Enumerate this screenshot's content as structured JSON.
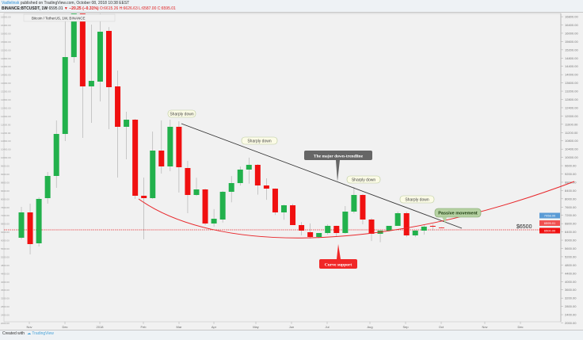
{
  "header": {
    "user": "Vadlelinsk",
    "published": "published on TradingView.com, October 08, 2018 10:38 EEST",
    "symbol": "BINANCE:BTCUSDT, 1W",
    "last": "6595.01",
    "change": "▼ −20.25 (−0.31%)",
    "ohlc": "O:6615.26 H:6626.63 L:6587.00 C:6595.01",
    "title": "Bitcoin / TetherUS, 1W, BINANCE"
  },
  "footer": {
    "created": "Created with",
    "brand": "TradingView"
  },
  "colors": {
    "up": "#22b14c",
    "down": "#f01010",
    "trendline": "#333333",
    "curve": "#e8262a",
    "level": "#e8262a"
  },
  "annotations": {
    "sharply_down": [
      "Sharply down",
      "Sharply down",
      "Sharply down",
      "Sharply down"
    ],
    "trendline_label": "The major down-trendline",
    "passive": "Passive movement",
    "curve_label": "Curve support",
    "level_label": "$6500"
  },
  "price_badges": [
    {
      "text": "7058.00",
      "color": "#5a9bd5"
    },
    {
      "text": "6595.01",
      "color": "#f05050"
    },
    {
      "text": "6500.00",
      "color": "#f01010"
    }
  ],
  "chart_data": {
    "type": "candlestick",
    "title": "Bitcoin / TetherUS, 1W, BINANCE",
    "ylim": [
      2000,
      17000
    ],
    "y_ticks": [
      "16800.00",
      "16400.00",
      "16000.00",
      "15600.00",
      "15200.00",
      "14800.00",
      "14400.00",
      "14000.00",
      "13600.00",
      "13200.00",
      "12800.00",
      "12400.00",
      "12000.00",
      "11600.00",
      "11200.00",
      "10800.00",
      "10400.00",
      "10000.00",
      "9600.00",
      "9200.00",
      "8800.00",
      "8400.00",
      "8000.00",
      "7600.00",
      "7200.00",
      "6800.00",
      "6400.00",
      "6000.00",
      "5600.00",
      "5200.00",
      "4800.00",
      "4400.00",
      "4000.00",
      "3600.00",
      "3200.00",
      "2800.00",
      "2400.00",
      "2000.00"
    ],
    "x_ticks": [
      "Nov",
      "Dec",
      "2018",
      "Feb",
      "Mar",
      "Apr",
      "May",
      "Jun",
      "Jul",
      "Aug",
      "Sep",
      "Oct",
      "Nov",
      "Dec"
    ],
    "candles": [
      [
        6117,
        7611,
        6040,
        7343
      ],
      [
        7343,
        7764,
        5313,
        5811
      ],
      [
        5849,
        8070,
        5696,
        7994
      ],
      [
        8032,
        9296,
        7764,
        9104
      ],
      [
        9104,
        11785,
        8530,
        11134
      ],
      [
        11134,
        16600,
        10789,
        14849
      ],
      [
        14849,
        19000,
        14581,
        17200
      ],
      [
        17200,
        19000,
        10943,
        13432
      ],
      [
        13432,
        16419,
        11670,
        13700
      ],
      [
        13662,
        17000,
        12705,
        16075
      ],
      [
        16113,
        16300,
        11364,
        13394
      ],
      [
        13432,
        14198,
        9028,
        11479
      ],
      [
        11479,
        12206,
        9908,
        11823
      ],
      [
        11823,
        11860,
        7994,
        8147
      ],
      [
        8147,
        9028,
        6040,
        8032
      ],
      [
        8032,
        11249,
        7994,
        10330
      ],
      [
        10330,
        11785,
        9219,
        9564
      ],
      [
        9564,
        11823,
        9334,
        11479
      ],
      [
        11479,
        11747,
        8300,
        9526
      ],
      [
        9487,
        9832,
        7304,
        8185
      ],
      [
        8185,
        9020,
        8140,
        8453
      ],
      [
        8453,
        8490,
        6730,
        6806
      ],
      [
        6806,
        7500,
        6650,
        7036
      ],
      [
        6998,
        8380,
        6850,
        8338
      ],
      [
        8338,
        9100,
        7830,
        8760
      ],
      [
        8760,
        9560,
        8640,
        9411
      ],
      [
        9411,
        9990,
        8730,
        9641
      ],
      [
        9641,
        9680,
        8200,
        8645
      ],
      [
        8645,
        8990,
        7950,
        8491
      ],
      [
        8491,
        8500,
        7220,
        7343
      ],
      [
        7343,
        7720,
        6990,
        7687
      ],
      [
        7687,
        7760,
        6730,
        6730
      ],
      [
        6730,
        6880,
        6230,
        6462
      ],
      [
        6385,
        6810,
        6080,
        6155
      ],
      [
        6155,
        6270,
        6100,
        6347
      ],
      [
        6347,
        6770,
        6270,
        6692
      ],
      [
        6692,
        6700,
        6200,
        6347
      ],
      [
        6347,
        7650,
        6310,
        7381
      ],
      [
        7381,
        8570,
        7300,
        8185
      ],
      [
        8185,
        8230,
        6770,
        6998
      ],
      [
        6998,
        7070,
        5960,
        6309
      ],
      [
        6309,
        6380,
        5900,
        6462
      ],
      [
        6462,
        6610,
        6420,
        6692
      ],
      [
        6692,
        7380,
        6690,
        7304
      ],
      [
        7304,
        7380,
        6150,
        6232
      ],
      [
        6232,
        6500,
        6150,
        6462
      ],
      [
        6462,
        6730,
        6270,
        6653
      ],
      [
        6692,
        6770,
        6460,
        6653
      ],
      [
        6615,
        6627,
        6587,
        6595
      ]
    ],
    "candle_fields": [
      "open",
      "high",
      "low",
      "close"
    ]
  }
}
